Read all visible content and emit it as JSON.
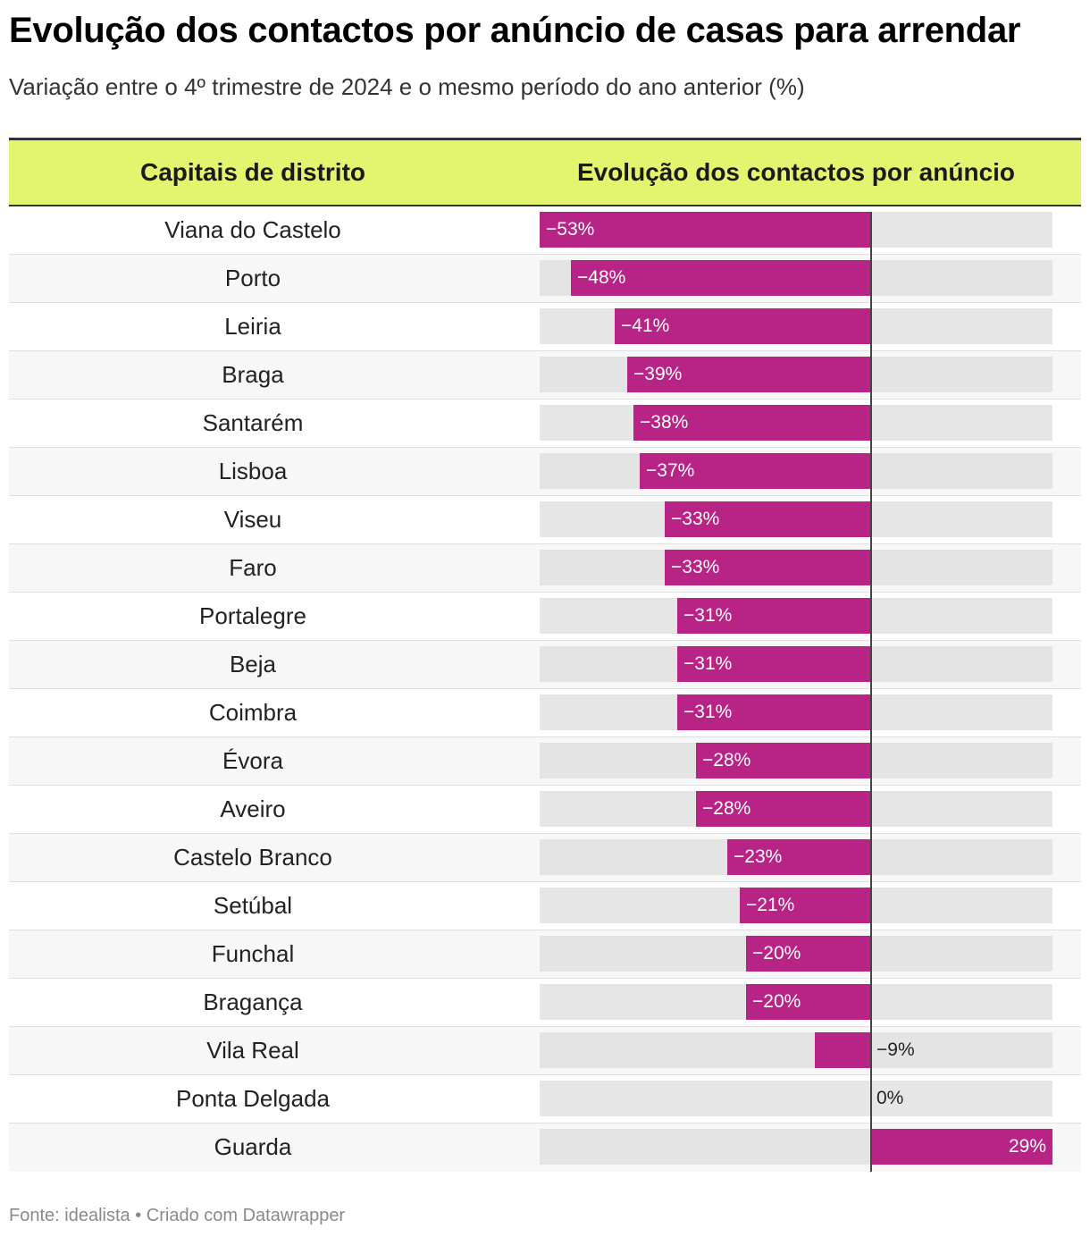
{
  "title": "Evolução dos contactos por anúncio de casas para arrendar",
  "subtitle": "Variação entre o 4º trimestre de 2024 e o mesmo período do ano anterior (%)",
  "footer": {
    "source": "Fonte: idealista",
    "separator": "•",
    "credit": "Criado com Datawrapper"
  },
  "colors": {
    "header_bg": "#e3f56f",
    "bar": "#b82386",
    "track": "#e6e6e6"
  },
  "chart_data": {
    "type": "table",
    "columns": [
      "Capitais de distrito",
      "Evolução dos contactos por anúncio"
    ],
    "unit": "%",
    "xlim": [
      -53,
      29
    ],
    "rows": [
      {
        "city": "Viana do Castelo",
        "value": -53,
        "label": "−53%"
      },
      {
        "city": "Porto",
        "value": -48,
        "label": "−48%"
      },
      {
        "city": "Leiria",
        "value": -41,
        "label": "−41%"
      },
      {
        "city": "Braga",
        "value": -39,
        "label": "−39%"
      },
      {
        "city": "Santarém",
        "value": -38,
        "label": "−38%"
      },
      {
        "city": "Lisboa",
        "value": -37,
        "label": "−37%"
      },
      {
        "city": "Viseu",
        "value": -33,
        "label": "−33%"
      },
      {
        "city": "Faro",
        "value": -33,
        "label": "−33%"
      },
      {
        "city": "Portalegre",
        "value": -31,
        "label": "−31%"
      },
      {
        "city": "Beja",
        "value": -31,
        "label": "−31%"
      },
      {
        "city": "Coimbra",
        "value": -31,
        "label": "−31%"
      },
      {
        "city": "Évora",
        "value": -28,
        "label": "−28%"
      },
      {
        "city": "Aveiro",
        "value": -28,
        "label": "−28%"
      },
      {
        "city": "Castelo Branco",
        "value": -23,
        "label": "−23%"
      },
      {
        "city": "Setúbal",
        "value": -21,
        "label": "−21%"
      },
      {
        "city": "Funchal",
        "value": -20,
        "label": "−20%"
      },
      {
        "city": "Bragança",
        "value": -20,
        "label": "−20%"
      },
      {
        "city": "Vila Real",
        "value": -9,
        "label": "−9%"
      },
      {
        "city": "Ponta Delgada",
        "value": 0,
        "label": "0%"
      },
      {
        "city": "Guarda",
        "value": 29,
        "label": "29%"
      }
    ]
  }
}
